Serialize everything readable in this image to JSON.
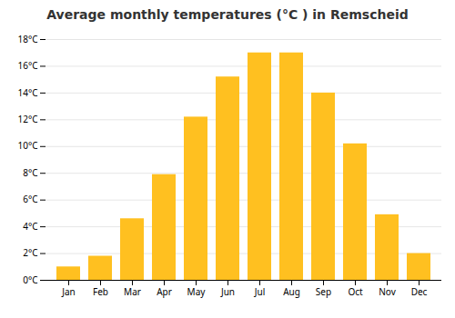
{
  "chart_data": {
    "type": "bar",
    "title": "Average monthly temperatures (°C ) in Remscheid",
    "categories": [
      "Jan",
      "Feb",
      "Mar",
      "Apr",
      "May",
      "Jun",
      "Jul",
      "Aug",
      "Sep",
      "Oct",
      "Nov",
      "Dec"
    ],
    "values": [
      1.0,
      1.8,
      4.6,
      7.9,
      12.2,
      15.2,
      17.0,
      17.0,
      14.0,
      10.2,
      4.9,
      2.0
    ],
    "color": "#FFC020",
    "ylim": [
      0,
      18
    ],
    "yticks": [
      {
        "value": 0,
        "label": "0°C"
      },
      {
        "value": 2,
        "label": "2°C"
      },
      {
        "value": 4,
        "label": "4°C"
      },
      {
        "value": 6,
        "label": "6°C"
      },
      {
        "value": 8,
        "label": "8°C"
      },
      {
        "value": 10,
        "label": "10°C"
      },
      {
        "value": 12,
        "label": "12°C"
      },
      {
        "value": 14,
        "label": "14°C"
      },
      {
        "value": 16,
        "label": "16°C"
      },
      {
        "value": 18,
        "label": "18°C"
      }
    ],
    "grid": true
  }
}
